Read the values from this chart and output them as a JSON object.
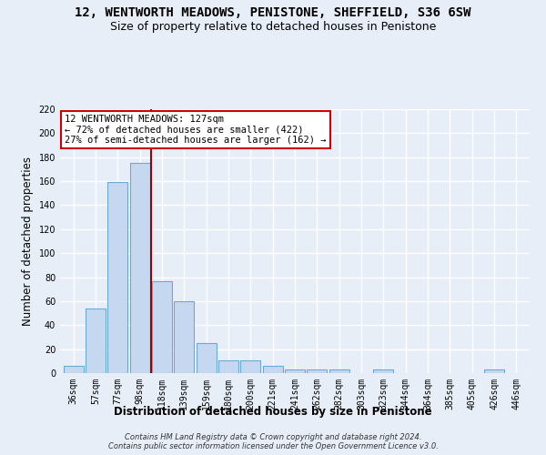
{
  "title": "12, WENTWORTH MEADOWS, PENISTONE, SHEFFIELD, S36 6SW",
  "subtitle": "Size of property relative to detached houses in Penistone",
  "xlabel": "Distribution of detached houses by size in Penistone",
  "ylabel": "Number of detached properties",
  "categories": [
    "36sqm",
    "57sqm",
    "77sqm",
    "98sqm",
    "118sqm",
    "139sqm",
    "159sqm",
    "180sqm",
    "200sqm",
    "221sqm",
    "241sqm",
    "262sqm",
    "282sqm",
    "303sqm",
    "323sqm",
    "344sqm",
    "364sqm",
    "385sqm",
    "405sqm",
    "426sqm",
    "446sqm"
  ],
  "values": [
    6,
    54,
    159,
    175,
    77,
    60,
    25,
    11,
    11,
    6,
    3,
    3,
    3,
    0,
    3,
    0,
    0,
    0,
    0,
    3,
    0
  ],
  "bar_color": "#c5d8ef",
  "bar_edge_color": "#6aaad4",
  "vline_x": 3.5,
  "vline_color": "#990000",
  "annotation_text": "12 WENTWORTH MEADOWS: 127sqm\n← 72% of detached houses are smaller (422)\n27% of semi-detached houses are larger (162) →",
  "annotation_box_color": "white",
  "annotation_box_edge": "#cc0000",
  "ylim": [
    0,
    220
  ],
  "yticks": [
    0,
    20,
    40,
    60,
    80,
    100,
    120,
    140,
    160,
    180,
    200,
    220
  ],
  "footer": "Contains HM Land Registry data © Crown copyright and database right 2024.\nContains public sector information licensed under the Open Government Licence v3.0.",
  "background_color": "#e8eef8",
  "grid_color": "#ffffff",
  "title_fontsize": 10,
  "subtitle_fontsize": 9,
  "tick_fontsize": 7,
  "ylabel_fontsize": 8.5,
  "xlabel_fontsize": 8.5
}
